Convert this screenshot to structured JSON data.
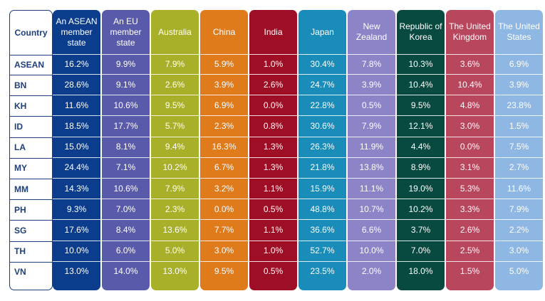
{
  "chart_data": {
    "type": "table",
    "corner_header": "Country",
    "columns": [
      {
        "header": "An ASEAN\nmember\nstate",
        "color": "#0b3d8c"
      },
      {
        "header": "An EU\nmember\nstate",
        "color": "#5a5aaa"
      },
      {
        "header": "Australia",
        "color": "#a8b02a"
      },
      {
        "header": "China",
        "color": "#e07b1c"
      },
      {
        "header": "India",
        "color": "#9e0f25"
      },
      {
        "header": "Japan",
        "color": "#1a8cba"
      },
      {
        "header": "New\nZealand",
        "color": "#8c84c7"
      },
      {
        "header": "Republic of\nKorea",
        "color": "#084a3f"
      },
      {
        "header": "The United\nKingdom",
        "color": "#b8475e"
      },
      {
        "header": "The United\nStates",
        "color": "#8eb7e3"
      }
    ],
    "rows": [
      {
        "label": "ASEAN",
        "values": [
          "16.2%",
          "9.9%",
          "7.9%",
          "5.9%",
          "1.0%",
          "30.4%",
          "7.8%",
          "10.3%",
          "3.6%",
          "6.9%"
        ]
      },
      {
        "label": "BN",
        "values": [
          "28.6%",
          "9.1%",
          "2.6%",
          "3.9%",
          "2.6%",
          "24.7%",
          "3.9%",
          "10.4%",
          "10.4%",
          "3.9%"
        ]
      },
      {
        "label": "KH",
        "values": [
          "11.6%",
          "10.6%",
          "9.5%",
          "6.9%",
          "0.0%",
          "22.8%",
          "0.5%",
          "9.5%",
          "4.8%",
          "23.8%"
        ]
      },
      {
        "label": "ID",
        "values": [
          "18.5%",
          "17.7%",
          "5.7%",
          "2.3%",
          "0.8%",
          "30.6%",
          "7.9%",
          "12.1%",
          "3.0%",
          "1.5%"
        ]
      },
      {
        "label": "LA",
        "values": [
          "15.0%",
          "8.1%",
          "9.4%",
          "16.3%",
          "1.3%",
          "26.3%",
          "11.9%",
          "4.4%",
          "0.0%",
          "7.5%"
        ]
      },
      {
        "label": "MY",
        "values": [
          "24.4%",
          "7.1%",
          "10.2%",
          "6.7%",
          "1.3%",
          "21.8%",
          "13.8%",
          "8.9%",
          "3.1%",
          "2.7%"
        ]
      },
      {
        "label": "MM",
        "values": [
          "14.3%",
          "10.6%",
          "7.9%",
          "3.2%",
          "1.1%",
          "15.9%",
          "11.1%",
          "19.0%",
          "5.3%",
          "11.6%"
        ]
      },
      {
        "label": "PH",
        "values": [
          "9.3%",
          "7.0%",
          "2.3%",
          "0.0%",
          "0.5%",
          "48.8%",
          "10.7%",
          "10.2%",
          "3.3%",
          "7.9%"
        ]
      },
      {
        "label": "SG",
        "values": [
          "17.6%",
          "8.4%",
          "13.6%",
          "7.7%",
          "1.1%",
          "36.6%",
          "6.6%",
          "3.7%",
          "2.6%",
          "2.2%"
        ]
      },
      {
        "label": "TH",
        "values": [
          "10.0%",
          "6.0%",
          "5.0%",
          "3.0%",
          "1.0%",
          "52.7%",
          "10.0%",
          "7.0%",
          "2.5%",
          "3.0%"
        ]
      },
      {
        "label": "VN",
        "values": [
          "13.0%",
          "14.0%",
          "13.0%",
          "9.5%",
          "0.5%",
          "23.5%",
          "2.0%",
          "18.0%",
          "1.5%",
          "5.0%"
        ]
      }
    ],
    "label_color": "#1f3f7a"
  }
}
